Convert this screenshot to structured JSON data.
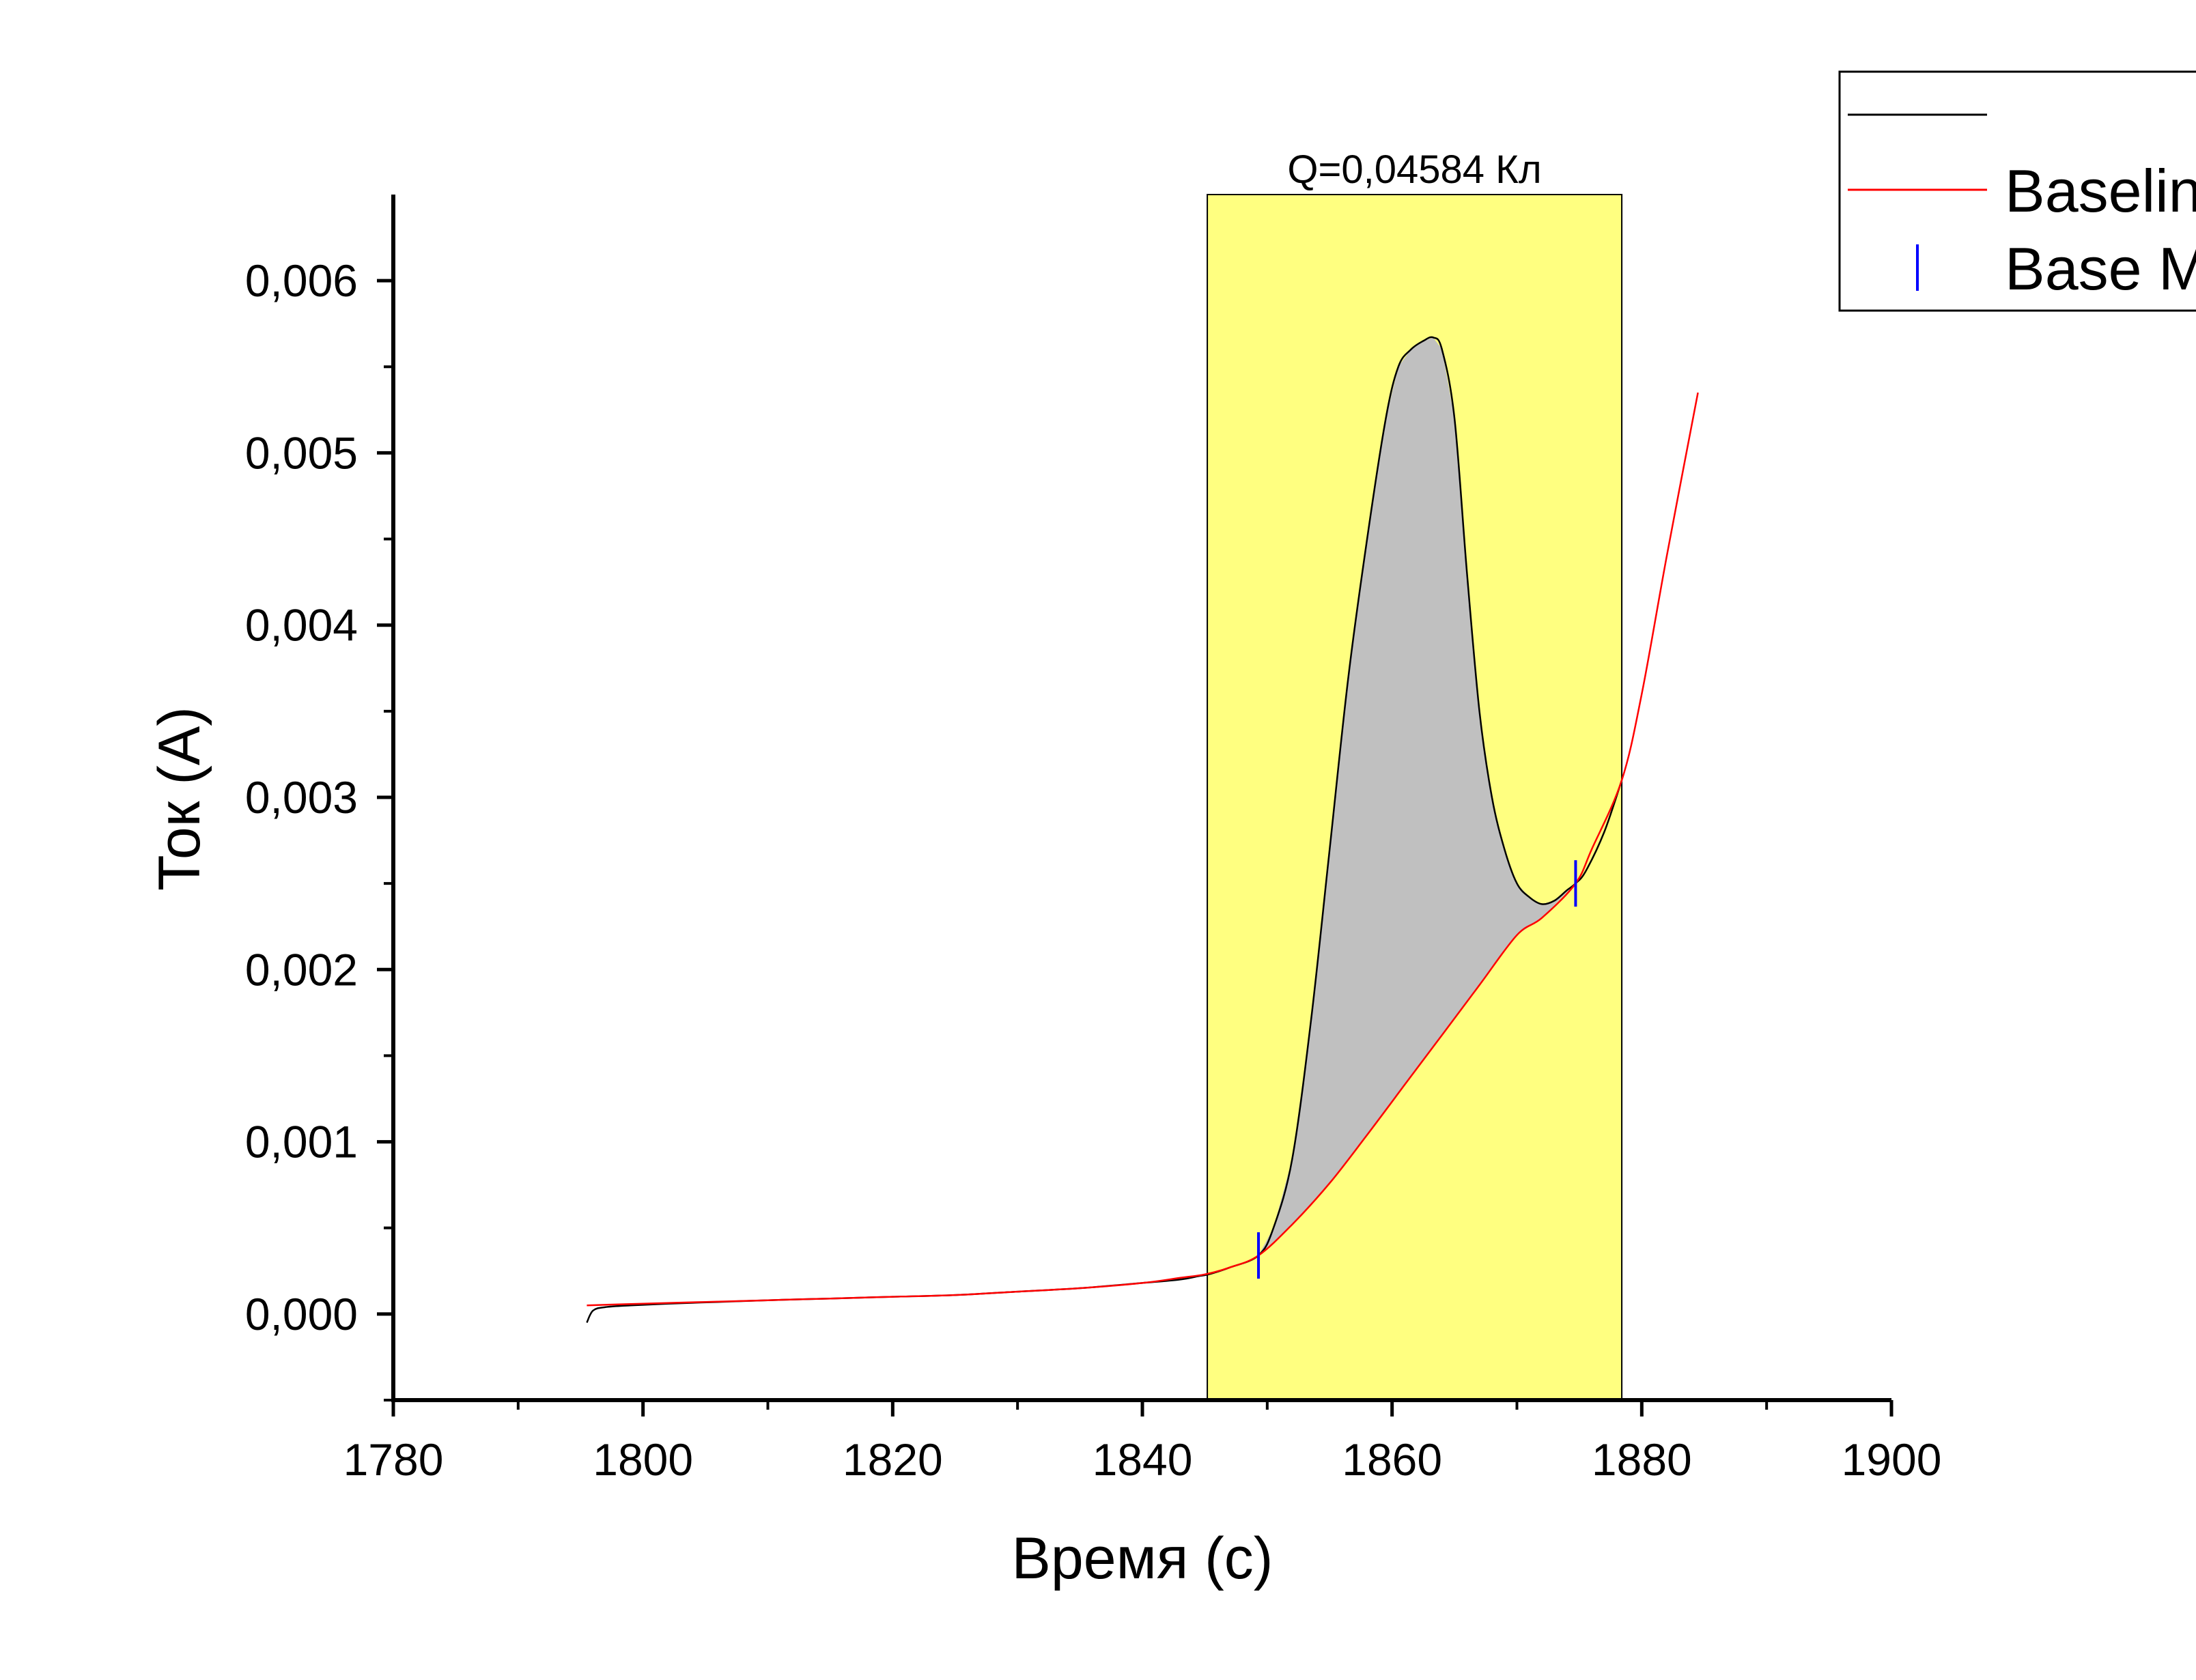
{
  "chart_data": {
    "type": "line",
    "xlabel": "Время (с)",
    "ylabel": "Ток (А)",
    "xlim": [
      1780,
      1900
    ],
    "ylim": [
      -0.0005,
      0.0065
    ],
    "x_ticks": [
      1780,
      1800,
      1820,
      1840,
      1860,
      1880,
      1900
    ],
    "x_tick_labels": [
      "1780",
      "1800",
      "1820",
      "1840",
      "1860",
      "1880",
      "1900"
    ],
    "y_ticks": [
      0,
      0.001,
      0.002,
      0.003,
      0.004,
      0.005,
      0.006
    ],
    "y_tick_labels": [
      "0,000",
      "0,001",
      "0,002",
      "0,003",
      "0,004",
      "0,005",
      "0,006"
    ],
    "grid": false,
    "legend_position": "top-right",
    "highlight_region": {
      "x_start": 1845.2,
      "x_end": 1878.4,
      "color": "#ffff80"
    },
    "integral_fill_color": "#c0c0c0",
    "annotation": "Q=0,04584 Кл",
    "series": [
      {
        "legend_label": "",
        "color": "#000000",
        "style": "line",
        "x": [
          1795.5,
          1796,
          1797,
          1799,
          1802,
          1806,
          1810,
          1815,
          1820,
          1825,
          1830,
          1835,
          1840,
          1843,
          1844.5,
          1845.3,
          1847,
          1849.3,
          1850.5,
          1852,
          1853.5,
          1855,
          1856.5,
          1858,
          1859.5,
          1860.5,
          1861.5,
          1862.5,
          1863.3,
          1864,
          1865,
          1866,
          1867,
          1868,
          1869,
          1870,
          1871,
          1872,
          1873,
          1874,
          1874.7,
          1875.5,
          1877,
          1878.4
        ],
        "y": [
          -5e-05,
          2e-05,
          4e-05,
          5e-05,
          6e-05,
          7e-05,
          8e-05,
          9e-05,
          0.0001,
          0.00011,
          0.00013,
          0.00015,
          0.00018,
          0.0002,
          0.00022,
          0.00023,
          0.00027,
          0.00034,
          0.0005,
          0.0009,
          0.0017,
          0.0027,
          0.0037,
          0.0045,
          0.0052,
          0.0055,
          0.0056,
          0.00565,
          0.00567,
          0.0056,
          0.0052,
          0.0043,
          0.0035,
          0.003,
          0.0027,
          0.0025,
          0.00242,
          0.00238,
          0.0024,
          0.00246,
          0.0025,
          0.00257,
          0.0028,
          0.0031
        ]
      },
      {
        "legend_label": "Baseline",
        "color": "#ff0000",
        "style": "line",
        "x": [
          1795.5,
          1800,
          1805,
          1810,
          1815,
          1820,
          1825,
          1830,
          1835,
          1840,
          1843,
          1845,
          1847,
          1849.3,
          1852,
          1855,
          1858,
          1861,
          1864,
          1867,
          1870,
          1872,
          1874.7,
          1876,
          1878.4,
          1880,
          1882,
          1884.5
        ],
        "y": [
          5e-05,
          6e-05,
          7e-05,
          8e-05,
          9e-05,
          0.0001,
          0.00011,
          0.00013,
          0.00015,
          0.00018,
          0.00021,
          0.00023,
          0.00027,
          0.00034,
          0.00052,
          0.00076,
          0.00104,
          0.00133,
          0.00162,
          0.00191,
          0.0022,
          0.0023,
          0.0025,
          0.0027,
          0.0031,
          0.0036,
          0.0044,
          0.00535
        ]
      },
      {
        "legend_label": "Base M",
        "color": "#0000ff",
        "style": "marker",
        "marker": "vertical-line",
        "x": [
          1849.3,
          1874.7
        ],
        "y": [
          0.00034,
          0.0025
        ]
      }
    ]
  }
}
